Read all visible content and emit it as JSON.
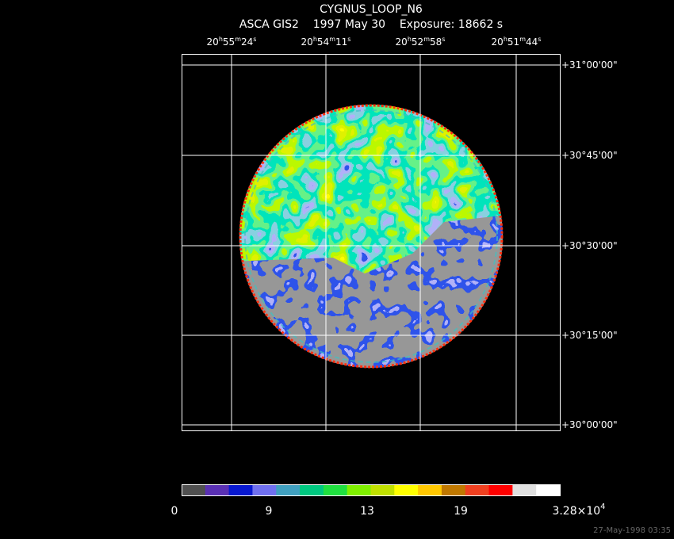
{
  "header": {
    "title": "CYGNUS_LOOP_N6",
    "subtitle": "ASCA GIS2    1997 May 30    Exposure: 18662 s"
  },
  "ra_labels": [
    [
      "20",
      "h",
      "55",
      "m",
      "24",
      "s"
    ],
    [
      "20",
      "h",
      "54",
      "m",
      "11",
      "s"
    ],
    [
      "20",
      "h",
      "52",
      "m",
      "58",
      "s"
    ],
    [
      "20",
      "h",
      "51",
      "m",
      "44",
      "s"
    ]
  ],
  "dec_labels": [
    "+31°00'00\"",
    "+30°45'00\"",
    "+30°30'00\"",
    "+30°15'00\"",
    "+30°00'00\""
  ],
  "colorbar": {
    "colors": [
      "#505050",
      "#5a30b4",
      "#0818d0",
      "#7070f0",
      "#40a0c0",
      "#00c880",
      "#20e040",
      "#80f000",
      "#c0e000",
      "#ffff00",
      "#ffc800",
      "#c07800",
      "#f04020",
      "#ff0000",
      "#e0e0e0",
      "#ffffff"
    ],
    "labels": [
      "0",
      "9",
      "13",
      "19",
      {
        "mantissa": "3.28×10",
        "exponent": "4"
      }
    ]
  },
  "timestamp": "27-May-1998 03:35"
}
